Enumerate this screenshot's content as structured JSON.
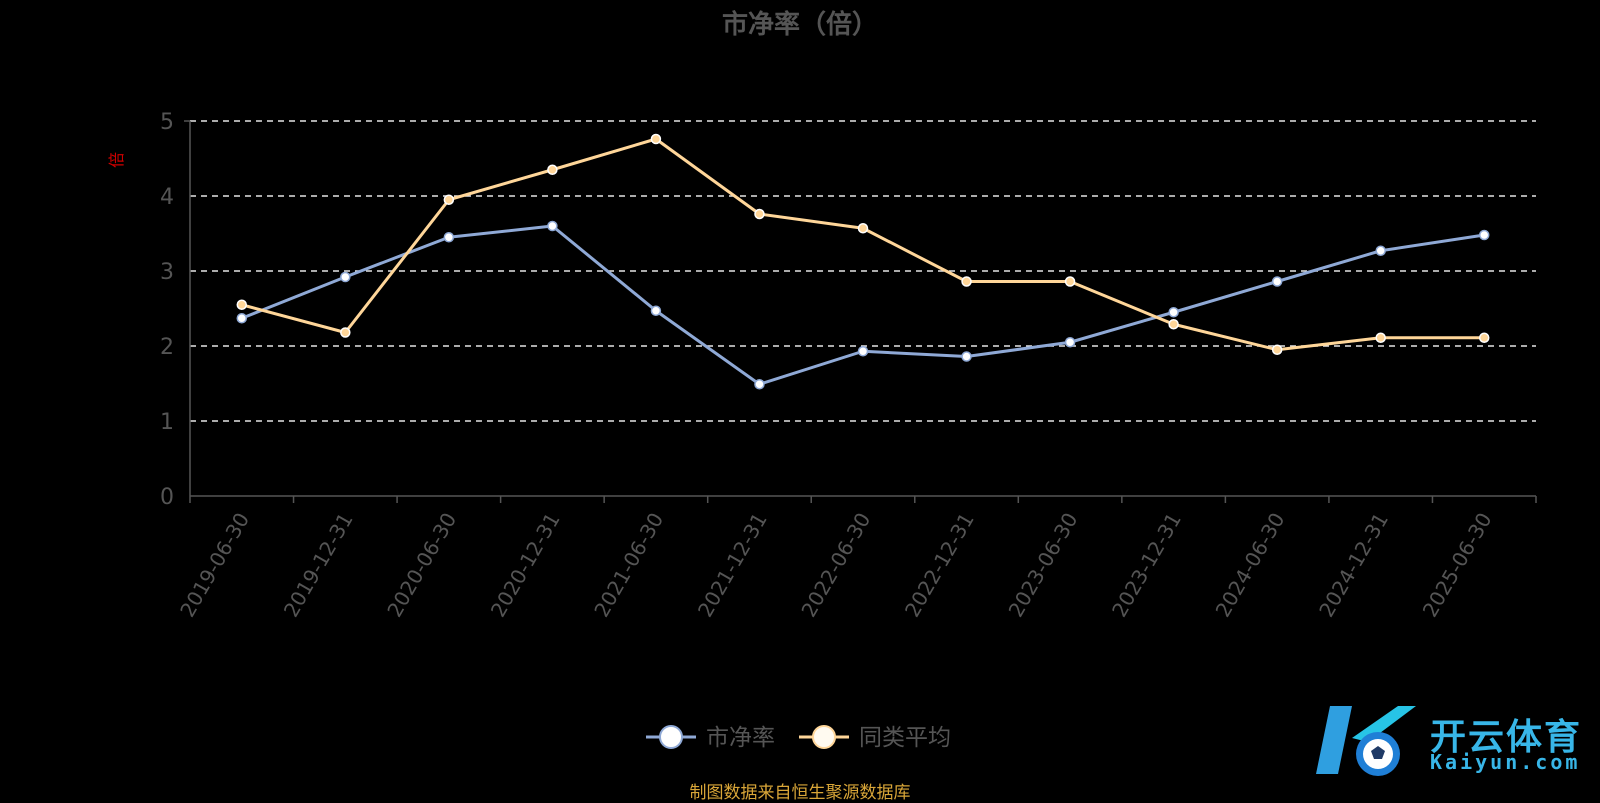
{
  "chart_data": {
    "type": "line",
    "title": "市净率（倍）",
    "ylabel": "倍",
    "categories": [
      "2019-06-30",
      "2019-12-31",
      "2020-06-30",
      "2020-12-31",
      "2021-06-30",
      "2021-12-31",
      "2022-06-30",
      "2022-12-31",
      "2023-06-30",
      "2023-12-31",
      "2024-06-30",
      "2024-12-31",
      "2025-06-30"
    ],
    "ylim": [
      0,
      5
    ],
    "yticks": [
      0,
      1,
      2,
      3,
      4,
      5
    ],
    "grid": true,
    "legend_position": "bottom",
    "series": [
      {
        "name": "市净率",
        "color": "#8fa9d6",
        "values": [
          2.37,
          2.92,
          3.45,
          3.6,
          2.47,
          1.49,
          1.93,
          1.86,
          2.05,
          2.45,
          2.86,
          3.27,
          3.48
        ]
      },
      {
        "name": "同类平均",
        "color": "#ffd699",
        "values": [
          2.55,
          2.18,
          3.95,
          4.35,
          4.76,
          3.76,
          3.57,
          2.86,
          2.86,
          2.29,
          1.95,
          2.11,
          2.11
        ]
      }
    ]
  },
  "source_note": "制图数据来自恒生聚源数据库",
  "watermark": {
    "cn": "开云体育",
    "en": "Kaiyun.com",
    "icon": "k-soccer-ball-logo"
  }
}
